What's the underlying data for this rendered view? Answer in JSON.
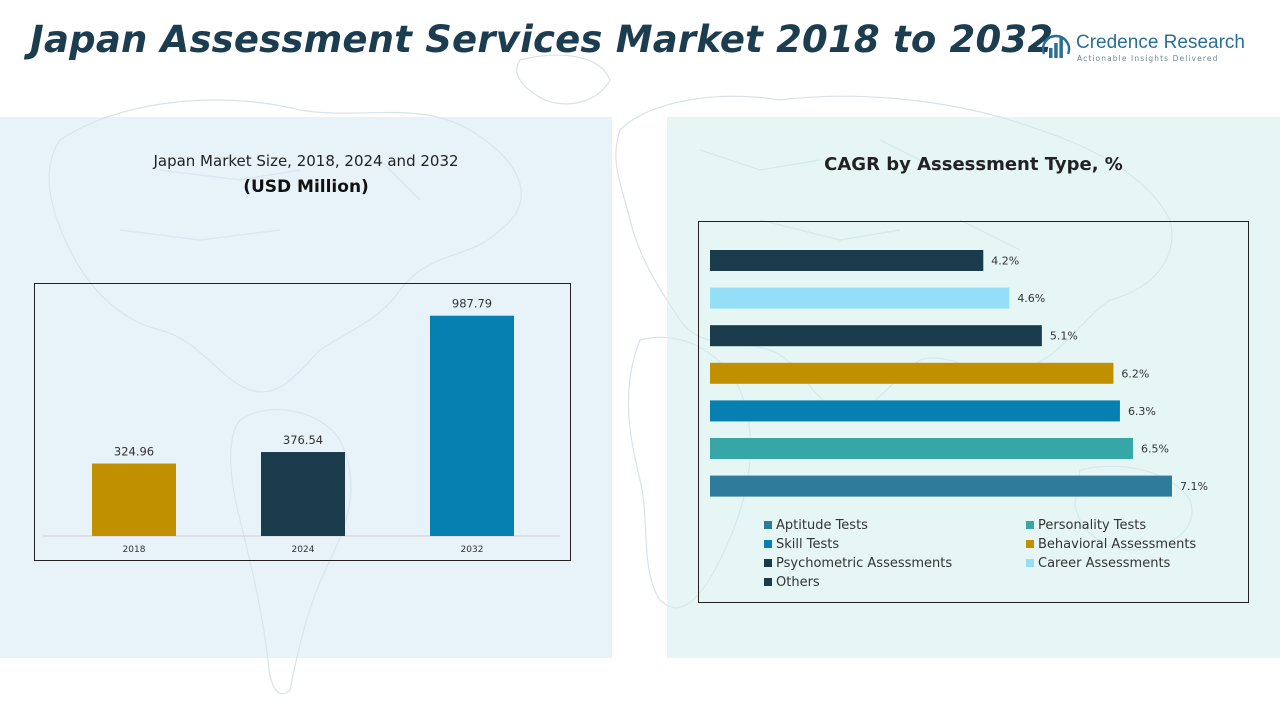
{
  "header": {
    "title": "Japan Assessment Services Market 2018 to 2032"
  },
  "logo": {
    "name": "Credence Research",
    "tagline": "Actionable Insights Delivered",
    "icon": "bar-chart-arc-logo-icon"
  },
  "colors": {
    "title": "#1c3d4f",
    "left_panel_bg": "#d6e8f4",
    "right_panel_bg": "#d0eeec"
  },
  "chart_data": [
    {
      "type": "bar",
      "title": "Japan Market Size, 2018, 2024 and 2032",
      "subtitle": "(USD Million)",
      "categories": [
        "2018",
        "2024",
        "2032"
      ],
      "values": [
        324.96,
        376.54,
        987.79
      ],
      "value_labels": [
        "324.96",
        "376.54",
        "987.79"
      ],
      "colors": [
        "#c09000",
        "#1a3b4b",
        "#0680b0"
      ],
      "ylim": [
        0,
        1130
      ],
      "grid": false
    },
    {
      "type": "bar",
      "orientation": "horizontal",
      "title": "CAGR by Assessment Type, %",
      "xlim": [
        0,
        7.8
      ],
      "grid": false,
      "legend_position": "bottom",
      "series": [
        {
          "name": "Others",
          "value": 4.2,
          "label": "4.2%",
          "color": "#1a3b4b"
        },
        {
          "name": "Career Assessments",
          "value": 4.6,
          "label": "4.6%",
          "color": "#94def8"
        },
        {
          "name": "Psychometric Assessments",
          "value": 5.1,
          "label": "5.1%",
          "color": "#1a3b4b"
        },
        {
          "name": "Behavioral Assessments",
          "value": 6.2,
          "label": "6.2%",
          "color": "#c09000"
        },
        {
          "name": "Skill Tests",
          "value": 6.3,
          "label": "6.3%",
          "color": "#0680b0"
        },
        {
          "name": "Personality Tests",
          "value": 6.5,
          "label": "6.5%",
          "color": "#36a6a6"
        },
        {
          "name": "Aptitude Tests",
          "value": 7.1,
          "label": "7.1%",
          "color": "#2e7b9b"
        }
      ],
      "legend": [
        {
          "name": "Aptitude Tests",
          "color": "#2e7b9b"
        },
        {
          "name": "Personality Tests",
          "color": "#36a6a6"
        },
        {
          "name": "Skill Tests",
          "color": "#0680b0"
        },
        {
          "name": "Behavioral Assessments",
          "color": "#c09000"
        },
        {
          "name": "Psychometric Assessments",
          "color": "#1a3b4b"
        },
        {
          "name": "Career Assessments",
          "color": "#94def8"
        },
        {
          "name": "Others",
          "color": "#1a3b4b"
        }
      ]
    }
  ]
}
